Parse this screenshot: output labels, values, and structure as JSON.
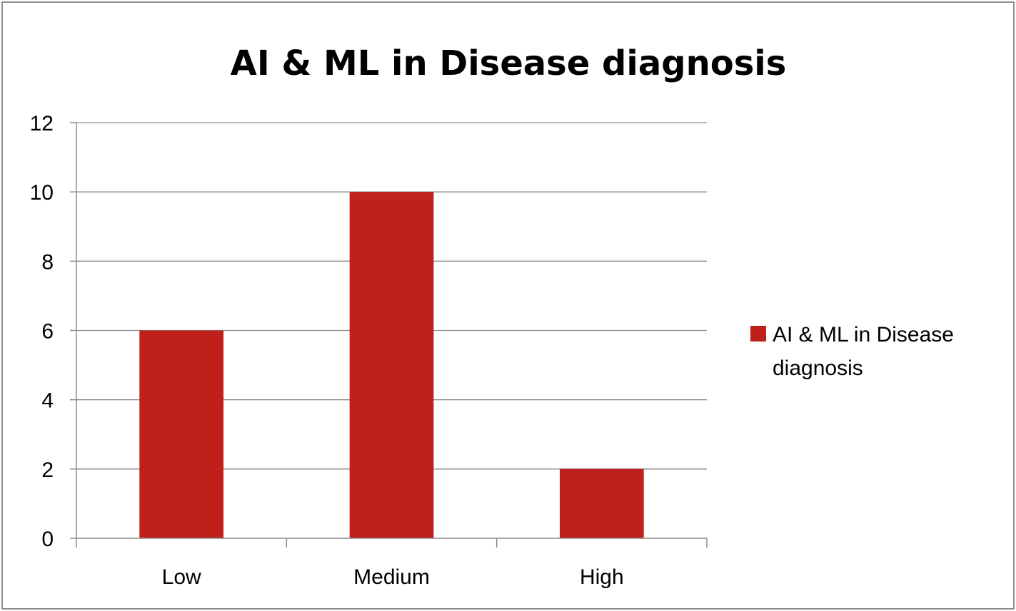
{
  "chart_data": {
    "type": "bar",
    "title": "AI & ML in Disease diagnosis",
    "categories": [
      "Low",
      "Medium",
      "High"
    ],
    "series": [
      {
        "name": "AI & ML in Disease diagnosis",
        "values": [
          6,
          10,
          2
        ],
        "color": "#c0201b"
      }
    ],
    "ylim": [
      0,
      12
    ],
    "yticks": [
      "0",
      "2",
      "4",
      "6",
      "8",
      "10",
      "12"
    ],
    "grid": true,
    "legend": {
      "position": "right",
      "lines": [
        "AI & ML in Disease",
        "diagnosis"
      ]
    }
  }
}
